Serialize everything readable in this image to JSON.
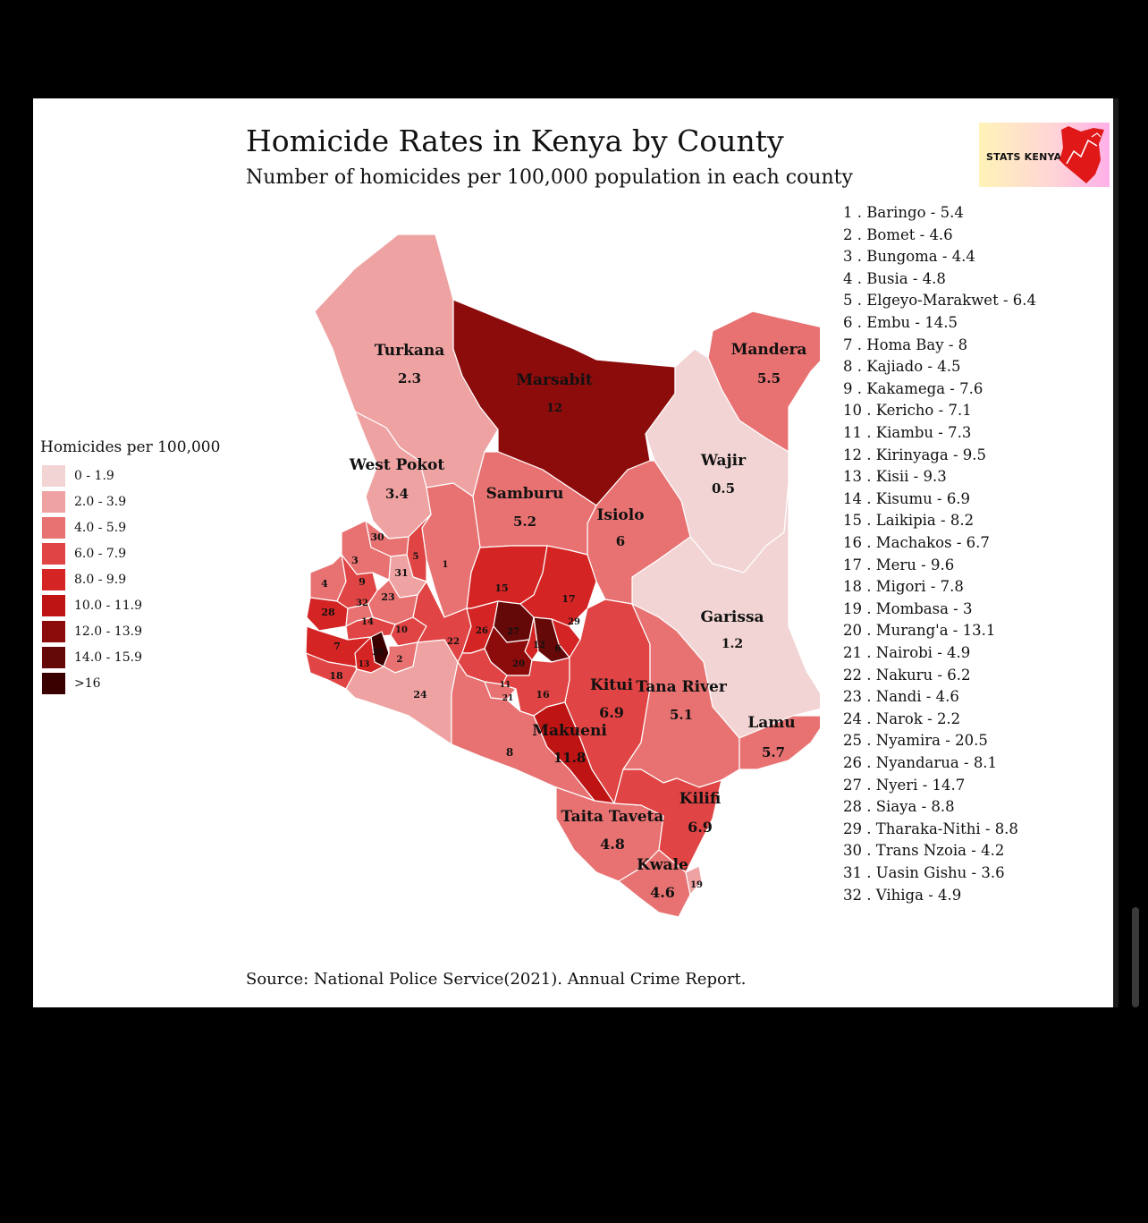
{
  "title": "Homicide Rates in Kenya by County",
  "subtitle": "Number of homicides per 100,000 population in each county",
  "source": "Source: National Police Service(2021). Annual Crime Report.",
  "logo_text": "STATS KENYA",
  "legend": {
    "title": "Homicides per 100,000",
    "items": [
      {
        "label": "0 - 1.9",
        "color": "#f2d4d4"
      },
      {
        "label": "2.0 - 3.9",
        "color": "#eea2a2"
      },
      {
        "label": "4.0 - 5.9",
        "color": "#e87272"
      },
      {
        "label": "6.0 - 7.9",
        "color": "#e04444"
      },
      {
        "label": "8.0 - 9.9",
        "color": "#d42424"
      },
      {
        "label": "10.0 - 11.9",
        "color": "#be1414"
      },
      {
        "label": "12.0 - 13.9",
        "color": "#8c0c0c"
      },
      {
        "label": "14.0 - 15.9",
        "color": "#640808"
      },
      {
        "label": ">16",
        "color": "#3a0000"
      }
    ]
  },
  "map_labels": {
    "turkana": {
      "name": "Turkana",
      "value": "2.3"
    },
    "marsabit": {
      "name": "Marsabit",
      "value": "12"
    },
    "mandera": {
      "name": "Mandera",
      "value": "5.5"
    },
    "wajir": {
      "name": "Wajir",
      "value": "0.5"
    },
    "west_pokot": {
      "name": "West Pokot",
      "value": "3.4"
    },
    "samburu": {
      "name": "Samburu",
      "value": "5.2"
    },
    "isiolo": {
      "name": "Isiolo",
      "value": "6"
    },
    "garissa": {
      "name": "Garissa",
      "value": "1.2"
    },
    "kitui": {
      "name": "Kitui",
      "value": "6.9"
    },
    "tana_river": {
      "name": "Tana River",
      "value": "5.1"
    },
    "lamu": {
      "name": "Lamu",
      "value": "5.7"
    },
    "makueni": {
      "name": "Makueni",
      "value": "11.8"
    },
    "taita_taveta": {
      "name": "Taita Taveta",
      "value": "4.8"
    },
    "kilifi": {
      "name": "Kilifi",
      "value": "6.9"
    },
    "kwale": {
      "name": "Kwale",
      "value": "4.6"
    }
  },
  "counties": [
    {
      "num": "1",
      "name": "Baringo",
      "rate": "5.4"
    },
    {
      "num": "2",
      "name": "Bomet",
      "rate": "4.6"
    },
    {
      "num": "3",
      "name": "Bungoma",
      "rate": "4.4"
    },
    {
      "num": "4",
      "name": "Busia",
      "rate": "4.8"
    },
    {
      "num": "5",
      "name": "Elgeyo-Marakwet",
      "rate": "6.4"
    },
    {
      "num": "6",
      "name": "Embu",
      "rate": "14.5"
    },
    {
      "num": "7",
      "name": "Homa Bay",
      "rate": "8"
    },
    {
      "num": "8",
      "name": "Kajiado",
      "rate": "4.5"
    },
    {
      "num": "9",
      "name": "Kakamega",
      "rate": "7.6"
    },
    {
      "num": "10",
      "name": "Kericho",
      "rate": "7.1"
    },
    {
      "num": "11",
      "name": "Kiambu",
      "rate": "7.3"
    },
    {
      "num": "12",
      "name": "Kirinyaga",
      "rate": "9.5"
    },
    {
      "num": "13",
      "name": "Kisii",
      "rate": "9.3"
    },
    {
      "num": "14",
      "name": "Kisumu",
      "rate": "6.9"
    },
    {
      "num": "15",
      "name": "Laikipia",
      "rate": "8.2"
    },
    {
      "num": "16",
      "name": "Machakos",
      "rate": "6.7"
    },
    {
      "num": "17",
      "name": "Meru",
      "rate": "9.6"
    },
    {
      "num": "18",
      "name": "Migori",
      "rate": "7.8"
    },
    {
      "num": "19",
      "name": "Mombasa",
      "rate": "3"
    },
    {
      "num": "20",
      "name": "Murang'a",
      "rate": "13.1"
    },
    {
      "num": "21",
      "name": "Nairobi",
      "rate": "4.9"
    },
    {
      "num": "22",
      "name": "Nakuru",
      "rate": "6.2"
    },
    {
      "num": "23",
      "name": "Nandi",
      "rate": "4.6"
    },
    {
      "num": "24",
      "name": "Narok",
      "rate": "2.2"
    },
    {
      "num": "25",
      "name": "Nyamira",
      "rate": "20.5"
    },
    {
      "num": "26",
      "name": "Nyandarua",
      "rate": "8.1"
    },
    {
      "num": "27",
      "name": "Nyeri",
      "rate": "14.7"
    },
    {
      "num": "28",
      "name": "Siaya",
      "rate": "8.8"
    },
    {
      "num": "29",
      "name": "Tharaka-Nithi",
      "rate": "8.8"
    },
    {
      "num": "30",
      "name": "Trans Nzoia",
      "rate": "4.2"
    },
    {
      "num": "31",
      "name": "Uasin Gishu",
      "rate": "3.6"
    },
    {
      "num": "32",
      "name": "Vihiga",
      "rate": "4.9"
    }
  ],
  "colors": {
    "c0": "#f2d4d4",
    "c2": "#eea2a2",
    "c4": "#e87272",
    "c6": "#e04444",
    "c8": "#d42424",
    "c10": "#be1414",
    "c12": "#8c0c0c",
    "c14": "#640808",
    "c16": "#3a0000"
  }
}
